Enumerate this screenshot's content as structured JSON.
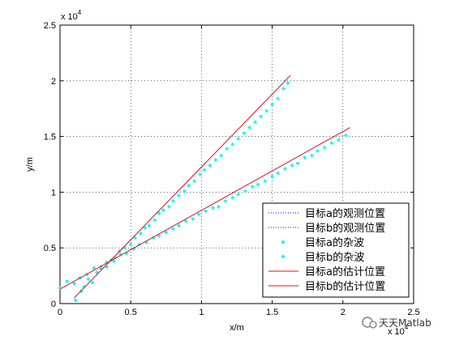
{
  "chart_data": {
    "type": "scatter",
    "title": "",
    "xlabel": "x/m",
    "ylabel": "y/m",
    "xlim": [
      0,
      25000
    ],
    "ylim": [
      0,
      25000
    ],
    "x_ticks": [
      0,
      5000,
      10000,
      15000,
      20000,
      25000
    ],
    "y_ticks": [
      0,
      5000,
      10000,
      15000,
      20000,
      25000
    ],
    "x_tick_labels": [
      "0",
      "0.5",
      "1",
      "1.5",
      "2",
      "2.5"
    ],
    "y_tick_labels": [
      "0",
      "0.5",
      "1",
      "1.5",
      "2",
      "2.5"
    ],
    "x_exponent_label": "x 10",
    "x_exponent_power": "4",
    "y_exponent_label": "x 10",
    "y_exponent_power": "4",
    "grid": "dotted",
    "legend_position": "bottom-right",
    "series": [
      {
        "name": "目标a的观测位置",
        "style": "dotted-line",
        "color": "#0000ff",
        "x": [
          1000,
          16300
        ],
        "y": [
          500,
          20500
        ]
      },
      {
        "name": "目标b的观测位置",
        "style": "dotted-line",
        "color": "#0000ff",
        "x": [
          0,
          20500
        ],
        "y": [
          1300,
          15800
        ]
      },
      {
        "name": "目标a的杂波",
        "style": "markers",
        "color": "#00ffff",
        "x": [
          1100,
          1500,
          1700,
          2000,
          2300,
          2600,
          2900,
          3300,
          3600,
          3900,
          4200,
          4600,
          5000,
          5300,
          5700,
          6000,
          6300,
          6700,
          7000,
          7300,
          7700,
          8000,
          8400,
          8800,
          9100,
          9500,
          9900,
          10200,
          10600,
          11000,
          11400,
          11800,
          12200,
          12600,
          13000,
          13400,
          13800,
          14200,
          14600,
          15000,
          15400,
          15800,
          16100
        ],
        "y": [
          300,
          1100,
          1500,
          2200,
          1900,
          2800,
          3100,
          3300,
          3900,
          4100,
          4700,
          5000,
          5300,
          5900,
          6300,
          6800,
          7000,
          7500,
          8100,
          8400,
          8700,
          9200,
          9700,
          10100,
          10600,
          11000,
          11600,
          12000,
          12400,
          12900,
          13300,
          13900,
          14300,
          14800,
          15300,
          15800,
          16300,
          16800,
          17300,
          17900,
          18400,
          19300,
          19800
        ]
      },
      {
        "name": "目标b的杂波",
        "style": "markers",
        "color": "#00ffff",
        "x": [
          0,
          500,
          1000,
          1400,
          1900,
          2400,
          2900,
          3300,
          3800,
          4300,
          4700,
          5200,
          5600,
          6100,
          6600,
          7000,
          7500,
          8000,
          8400,
          8900,
          9400,
          9800,
          10300,
          10800,
          11200,
          11700,
          12200,
          12600,
          13100,
          13600,
          14000,
          14500,
          15000,
          15400,
          15900,
          16400,
          16800,
          17300,
          17800,
          18200,
          18700,
          19200,
          19700,
          20200
        ],
        "y": [
          1400,
          2000,
          1800,
          2300,
          2600,
          3200,
          3300,
          3700,
          3800,
          4400,
          4500,
          4900,
          5300,
          5500,
          5900,
          6100,
          6400,
          6700,
          7000,
          7400,
          7600,
          8000,
          8300,
          8600,
          8700,
          9200,
          9500,
          9800,
          10100,
          10500,
          10700,
          11000,
          11400,
          11700,
          12100,
          12400,
          12600,
          13100,
          13300,
          13700,
          14000,
          14400,
          14700,
          15100
        ]
      },
      {
        "name": "目标a的估计位置",
        "style": "solid-line",
        "color": "#ff0000",
        "x": [
          1000,
          16300
        ],
        "y": [
          500,
          20500
        ]
      },
      {
        "name": "目标b的估计位置",
        "style": "solid-line",
        "color": "#ff0000",
        "x": [
          0,
          20500
        ],
        "y": [
          1300,
          15800
        ]
      }
    ]
  },
  "watermark": {
    "text": "天天Matlab"
  }
}
